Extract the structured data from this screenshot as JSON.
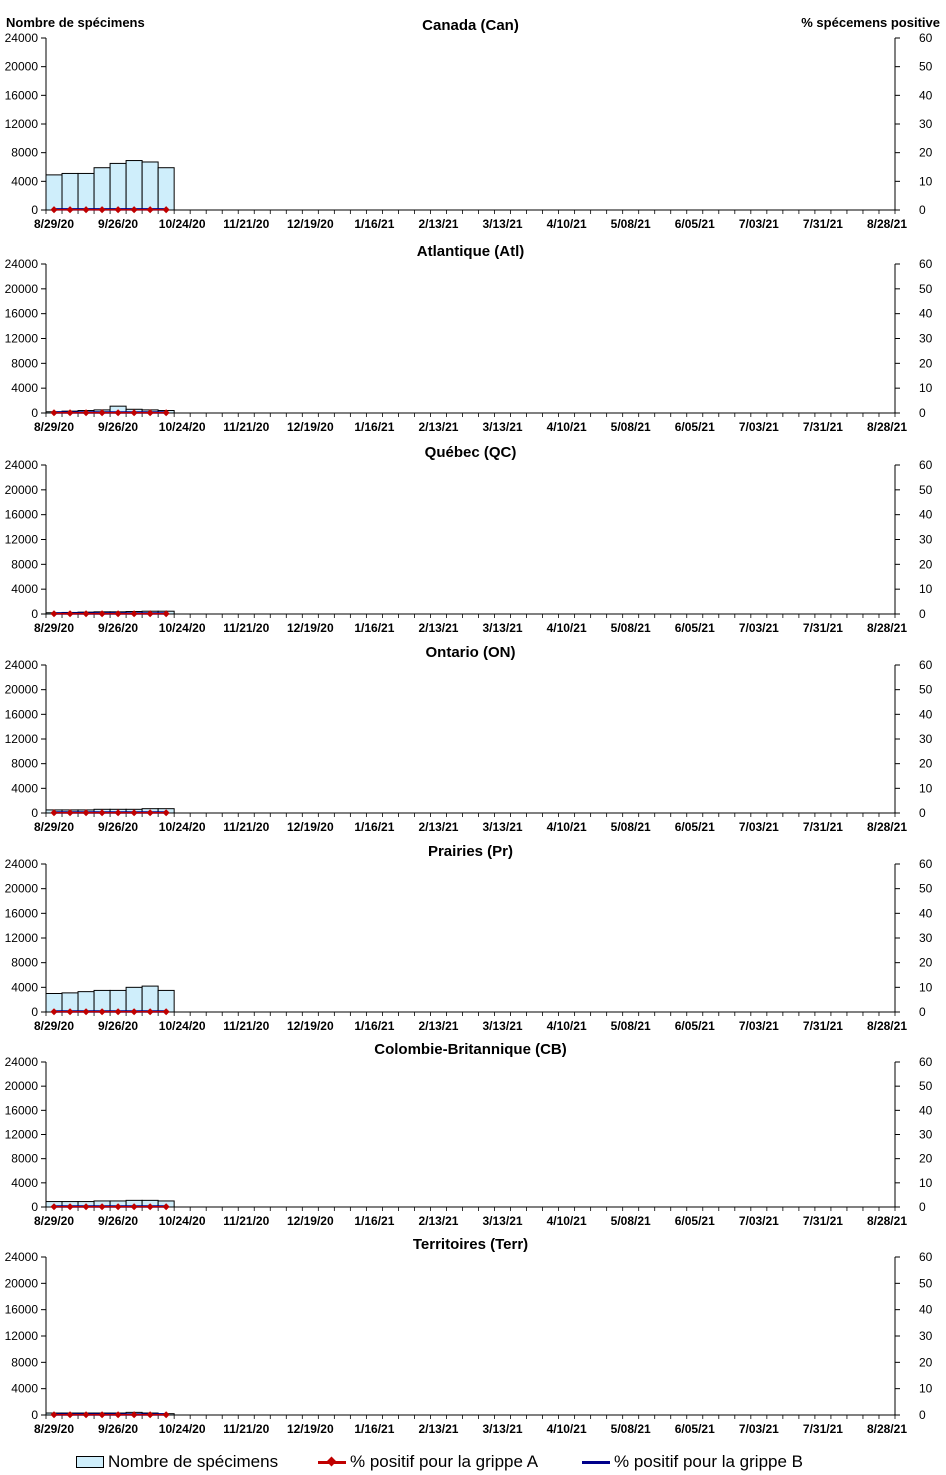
{
  "left_axis_title": "Nombre de spécimens",
  "right_axis_title": "% spécemens positive",
  "colors": {
    "bar_fill": "#cfeefb",
    "bar_stroke": "#000000",
    "flu_a": "#c00000",
    "flu_b": "#00008b"
  },
  "legend": {
    "specimens": "Nombre de spécimens",
    "flu_a": "% positif pour la grippe A",
    "flu_b": "% positif pour la grippe B"
  },
  "chart_data": [
    {
      "type": "bar",
      "title": "Canada (Can)",
      "x_tick_labels": [
        "8/29/20",
        "9/26/20",
        "10/24/20",
        "11/21/20",
        "12/19/20",
        "1/16/21",
        "2/13/21",
        "3/13/21",
        "4/10/21",
        "5/08/21",
        "6/05/21",
        "7/03/21",
        "7/31/21",
        "8/28/21"
      ],
      "left_ticks": [
        "0",
        "4000",
        "8000",
        "12000",
        "16000",
        "20000",
        "24000"
      ],
      "right_ticks": [
        "0",
        "10",
        "20",
        "30",
        "40",
        "50",
        "60"
      ],
      "ylim": [
        0,
        24000
      ],
      "y2lim": [
        0,
        60
      ],
      "series": [
        {
          "name": "Nombre de spécimens",
          "values": [
            4900,
            5100,
            5100,
            5900,
            6500,
            6900,
            6700,
            5900
          ]
        },
        {
          "name": "% positif pour la grippe A",
          "values": [
            0.1,
            0.1,
            0.1,
            0.1,
            0.1,
            0.1,
            0.1,
            0.1
          ]
        },
        {
          "name": "% positif pour la grippe B",
          "values": [
            0.2,
            0.2,
            0.2,
            0.2,
            0.2,
            0.2,
            0.2,
            0.2
          ]
        }
      ]
    },
    {
      "type": "bar",
      "title": "Atlantique (Atl)",
      "x_tick_labels": [
        "8/29/20",
        "9/26/20",
        "10/24/20",
        "11/21/20",
        "12/19/20",
        "1/16/21",
        "2/13/21",
        "3/13/21",
        "4/10/21",
        "5/08/21",
        "6/05/21",
        "7/03/21",
        "7/31/21",
        "8/28/21"
      ],
      "left_ticks": [
        "0",
        "4000",
        "8000",
        "12000",
        "16000",
        "20000",
        "24000"
      ],
      "right_ticks": [
        "0",
        "10",
        "20",
        "30",
        "40",
        "50",
        "60"
      ],
      "ylim": [
        0,
        24000
      ],
      "y2lim": [
        0,
        60
      ],
      "series": [
        {
          "name": "Nombre de spécimens",
          "values": [
            200,
            300,
            400,
            500,
            1100,
            600,
            500,
            400
          ]
        },
        {
          "name": "% positif pour la grippe A",
          "values": [
            0.1,
            0.1,
            0.1,
            0.1,
            0.1,
            0.1,
            0.1,
            0.1
          ]
        },
        {
          "name": "% positif pour la grippe B",
          "values": [
            0.2,
            0.2,
            0.2,
            0.2,
            0.2,
            0.2,
            0.2,
            0.2
          ]
        }
      ]
    },
    {
      "type": "bar",
      "title": "Québec (QC)",
      "x_tick_labels": [
        "8/29/20",
        "9/26/20",
        "10/24/20",
        "11/21/20",
        "12/19/20",
        "1/16/21",
        "2/13/21",
        "3/13/21",
        "4/10/21",
        "5/08/21",
        "6/05/21",
        "7/03/21",
        "7/31/21",
        "8/28/21"
      ],
      "left_ticks": [
        "0",
        "4000",
        "8000",
        "12000",
        "16000",
        "20000",
        "24000"
      ],
      "right_ticks": [
        "0",
        "10",
        "20",
        "30",
        "40",
        "50",
        "60"
      ],
      "ylim": [
        0,
        24000
      ],
      "y2lim": [
        0,
        60
      ],
      "series": [
        {
          "name": "Nombre de spécimens",
          "values": [
            200,
            250,
            300,
            350,
            350,
            400,
            450,
            450
          ]
        },
        {
          "name": "% positif pour la grippe A",
          "values": [
            0.1,
            0.1,
            0.1,
            0.1,
            0.1,
            0.1,
            0.1,
            0.1
          ]
        },
        {
          "name": "% positif pour la grippe B",
          "values": [
            0.2,
            0.2,
            0.2,
            0.2,
            0.2,
            0.2,
            0.2,
            0.2
          ]
        }
      ]
    },
    {
      "type": "bar",
      "title": "Ontario (ON)",
      "x_tick_labels": [
        "8/29/20",
        "9/26/20",
        "10/24/20",
        "11/21/20",
        "12/19/20",
        "1/16/21",
        "2/13/21",
        "3/13/21",
        "4/10/21",
        "5/08/21",
        "6/05/21",
        "7/03/21",
        "7/31/21",
        "8/28/21"
      ],
      "left_ticks": [
        "0",
        "4000",
        "8000",
        "12000",
        "16000",
        "20000",
        "24000"
      ],
      "right_ticks": [
        "0",
        "10",
        "20",
        "30",
        "40",
        "50",
        "60"
      ],
      "ylim": [
        0,
        24000
      ],
      "y2lim": [
        0,
        60
      ],
      "series": [
        {
          "name": "Nombre de spécimens",
          "values": [
            500,
            500,
            500,
            600,
            600,
            600,
            700,
            700
          ]
        },
        {
          "name": "% positif pour la grippe A",
          "values": [
            0.1,
            0.1,
            0.1,
            0.1,
            0.1,
            0.1,
            0.1,
            0.1
          ]
        },
        {
          "name": "% positif pour la grippe B",
          "values": [
            0.2,
            0.2,
            0.2,
            0.2,
            0.2,
            0.2,
            0.2,
            0.2
          ]
        }
      ]
    },
    {
      "type": "bar",
      "title": "Prairies (Pr)",
      "x_tick_labels": [
        "8/29/20",
        "9/26/20",
        "10/24/20",
        "11/21/20",
        "12/19/20",
        "1/16/21",
        "2/13/21",
        "3/13/21",
        "4/10/21",
        "5/08/21",
        "6/05/21",
        "7/03/21",
        "7/31/21",
        "8/28/21"
      ],
      "left_ticks": [
        "0",
        "4000",
        "8000",
        "12000",
        "16000",
        "20000",
        "24000"
      ],
      "right_ticks": [
        "0",
        "10",
        "20",
        "30",
        "40",
        "50",
        "60"
      ],
      "ylim": [
        0,
        24000
      ],
      "y2lim": [
        0,
        60
      ],
      "series": [
        {
          "name": "Nombre de spécimens",
          "values": [
            3000,
            3100,
            3300,
            3500,
            3500,
            4000,
            4200,
            3500
          ]
        },
        {
          "name": "% positif pour la grippe A",
          "values": [
            0.1,
            0.1,
            0.1,
            0.1,
            0.1,
            0.1,
            0.1,
            0.1
          ]
        },
        {
          "name": "% positif pour la grippe B",
          "values": [
            0.2,
            0.2,
            0.2,
            0.2,
            0.2,
            0.2,
            0.2,
            0.2
          ]
        }
      ]
    },
    {
      "type": "bar",
      "title": "Colombie-Britannique (CB)",
      "x_tick_labels": [
        "8/29/20",
        "9/26/20",
        "10/24/20",
        "11/21/20",
        "12/19/20",
        "1/16/21",
        "2/13/21",
        "3/13/21",
        "4/10/21",
        "5/08/21",
        "6/05/21",
        "7/03/21",
        "7/31/21",
        "8/28/21"
      ],
      "left_ticks": [
        "0",
        "4000",
        "8000",
        "12000",
        "16000",
        "20000",
        "24000"
      ],
      "right_ticks": [
        "0",
        "10",
        "20",
        "30",
        "40",
        "50",
        "60"
      ],
      "ylim": [
        0,
        24000
      ],
      "y2lim": [
        0,
        60
      ],
      "series": [
        {
          "name": "Nombre de spécimens",
          "values": [
            900,
            900,
            900,
            1000,
            1000,
            1100,
            1100,
            1000
          ]
        },
        {
          "name": "% positif pour la grippe A",
          "values": [
            0.1,
            0.1,
            0.1,
            0.1,
            0.1,
            0.1,
            0.1,
            0.1
          ]
        },
        {
          "name": "% positif pour la grippe B",
          "values": [
            0.2,
            0.2,
            0.2,
            0.2,
            0.2,
            0.2,
            0.2,
            0.2
          ]
        }
      ]
    },
    {
      "type": "bar",
      "title": "Territoires (Terr)",
      "x_tick_labels": [
        "8/29/20",
        "9/26/20",
        "10/24/20",
        "11/21/20",
        "12/19/20",
        "1/16/21",
        "2/13/21",
        "3/13/21",
        "4/10/21",
        "5/08/21",
        "6/05/21",
        "7/03/21",
        "7/31/21",
        "8/28/21"
      ],
      "left_ticks": [
        "0",
        "4000",
        "8000",
        "12000",
        "16000",
        "20000",
        "24000"
      ],
      "right_ticks": [
        "0",
        "10",
        "20",
        "30",
        "40",
        "50",
        "60"
      ],
      "ylim": [
        0,
        24000
      ],
      "y2lim": [
        0,
        60
      ],
      "series": [
        {
          "name": "Nombre de spécimens",
          "values": [
            300,
            300,
            300,
            300,
            300,
            400,
            300,
            200
          ]
        },
        {
          "name": "% positif pour la grippe A",
          "values": [
            0.1,
            0.1,
            0.1,
            0.1,
            0.1,
            0.1,
            0.1,
            0.1
          ]
        },
        {
          "name": "% positif pour la grippe B",
          "values": [
            0.2,
            0.2,
            0.2,
            0.2,
            0.2,
            0.2,
            0.2,
            0.2
          ]
        }
      ]
    }
  ]
}
